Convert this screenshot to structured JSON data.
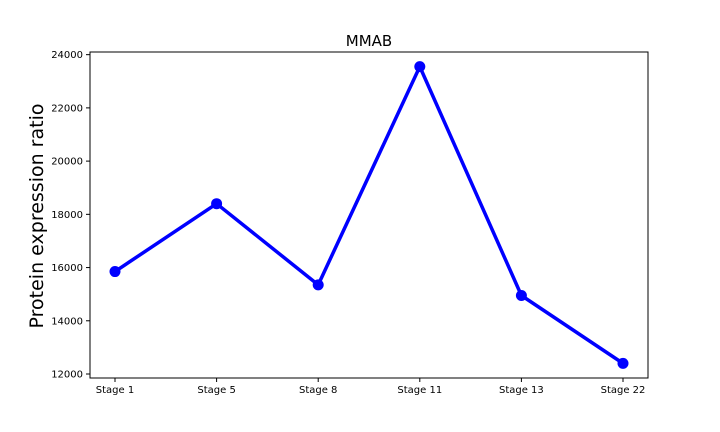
{
  "chart_data": {
    "type": "line",
    "title": "MMAB",
    "xlabel": "",
    "ylabel": "Protein expression ratio",
    "categories": [
      "Stage 1",
      "Stage 5",
      "Stage 8",
      "Stage 11",
      "Stage 13",
      "Stage 22"
    ],
    "series": [
      {
        "values": [
          15850,
          18400,
          15350,
          23550,
          14950,
          12400
        ]
      }
    ],
    "ylim": [
      11850,
      24100
    ],
    "yticks": [
      12000,
      14000,
      16000,
      18000,
      20000,
      22000,
      24000
    ],
    "ytick_labels": [
      "12000",
      "14000",
      "16000",
      "18000",
      "20000",
      "22000",
      "24000"
    ],
    "grid": false,
    "legend": "none",
    "colors": {
      "line": "#0000ff",
      "marker": "#0000ff",
      "axes": "#000000"
    }
  }
}
